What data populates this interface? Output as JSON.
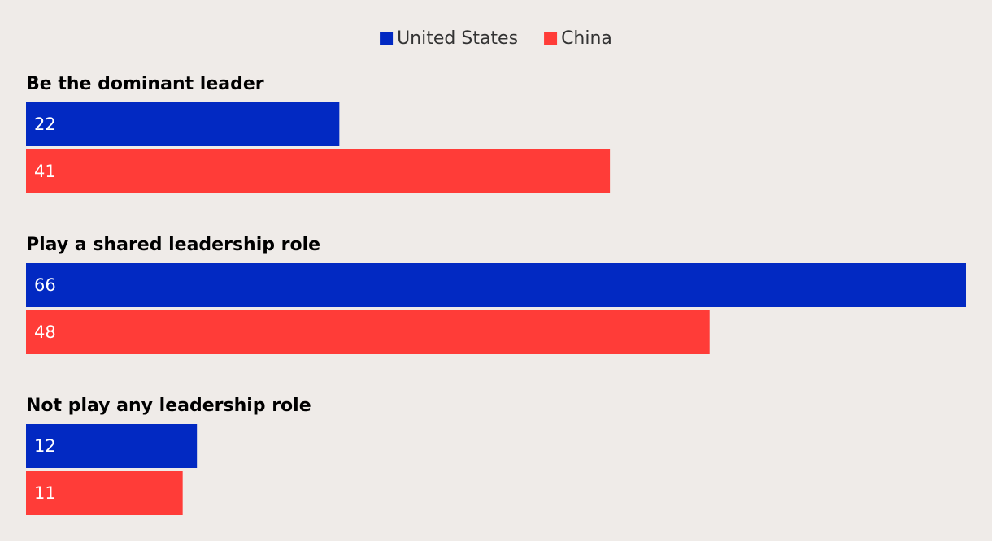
{
  "chart_data": {
    "type": "bar",
    "categories": [
      "Be the dominant leader",
      "Play a shared leadership role",
      "Not play any leadership role"
    ],
    "series": [
      {
        "name": "United States",
        "color": "#0229c2",
        "values": [
          22,
          66,
          12
        ]
      },
      {
        "name": "China",
        "color": "#ff3c38",
        "values": [
          41,
          48,
          11
        ]
      }
    ],
    "legend": "top"
  }
}
